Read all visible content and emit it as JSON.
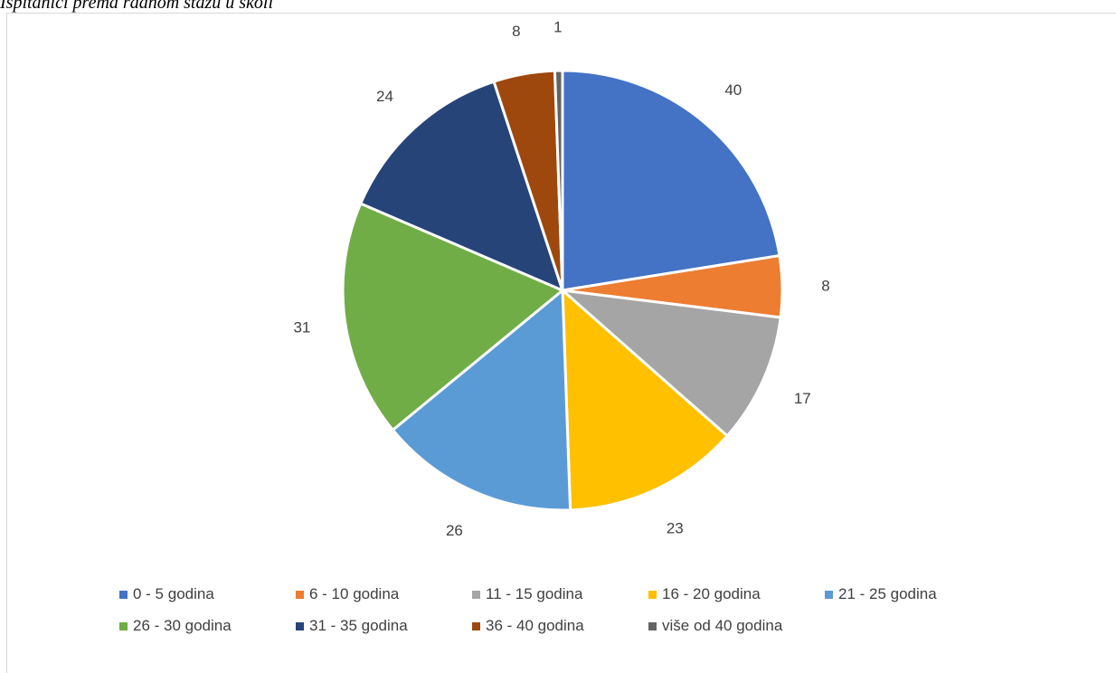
{
  "caption": "Ispitanici prema radnom stažu u školi",
  "chart_data": {
    "type": "pie",
    "categories": [
      "0 - 5 godina",
      "6 - 10 godina",
      "11 - 15 godina",
      "16 - 20 godina",
      "21 - 25 godina",
      "26 - 30 godina",
      "31 - 35 godina",
      "36 - 40 godina",
      "više od 40 godina"
    ],
    "values": [
      40,
      8,
      17,
      23,
      26,
      31,
      24,
      8,
      1
    ],
    "colors": [
      "#4472c4",
      "#ed7d31",
      "#a5a5a5",
      "#ffc000",
      "#5b9bd5",
      "#70ad47",
      "#264478",
      "#9e480e",
      "#636363"
    ],
    "data_labels": [
      "40",
      "8",
      "17",
      "23",
      "26",
      "31",
      "24",
      "8",
      "1"
    ],
    "legend_position": "bottom",
    "start_angle": "12 o'clock",
    "direction": "clockwise"
  }
}
